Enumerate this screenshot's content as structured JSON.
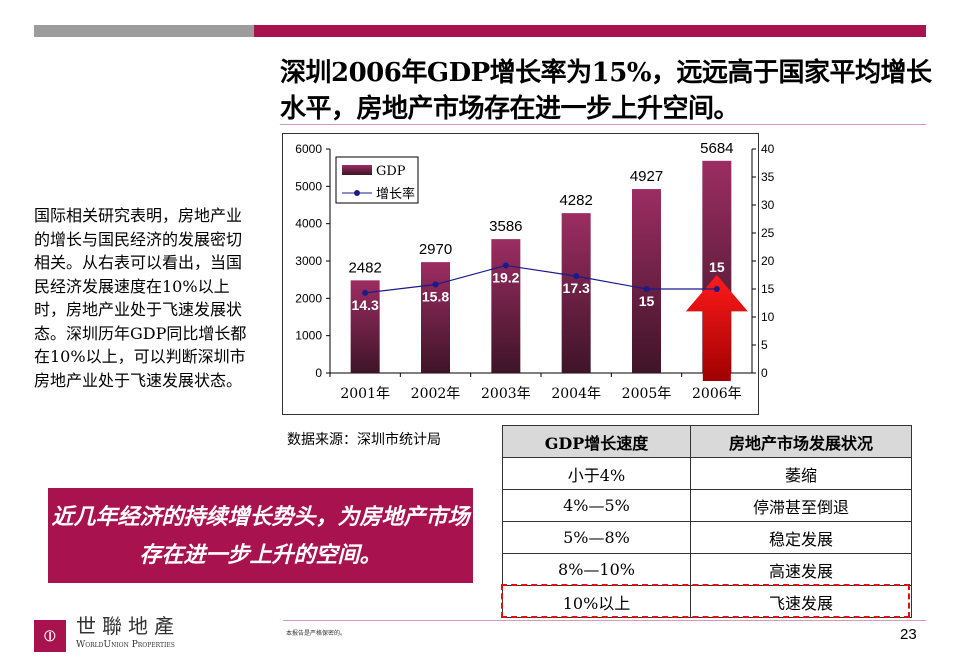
{
  "title": "深圳2006年GDP增长率为15%，远远高于国家平均增长水平，房地产市场存在进一步上升空间。",
  "left_text": "国际相关研究表明，房地产业的增长与国民经济的发展密切相关。从右表可以看出，当国民经济发展速度在10%以上时，房地产业处于飞速发展状态。深圳历年GDP同比增长都在10%以上，可以判断深圳市房地产业处于飞速发展状态。",
  "source": "数据来源：深圳市统计局",
  "callout": "近几年经济的持续增长势头，为房地产市场存在进一步上升的空间。",
  "table": {
    "headers": [
      "GDP增长速度",
      "房地产市场发展状况"
    ],
    "rows": [
      [
        "小于4%",
        "萎缩"
      ],
      [
        "4%—5%",
        "停滞甚至倒退"
      ],
      [
        "5%—8%",
        "稳定发展"
      ],
      [
        "8%—10%",
        "高速发展"
      ],
      [
        "10%以上",
        "飞速发展"
      ]
    ]
  },
  "footer": {
    "note": "本报告是严格保密的。",
    "page": "23",
    "logo_cn": "世聯地產",
    "logo_en": "WorldUnion Properties"
  },
  "colors": {
    "brand": "#a8124f",
    "bar": "#8b2454",
    "line": "#1a1a8c",
    "highlight": "#e01010"
  },
  "chart_data": {
    "type": "bar+line",
    "categories": [
      "2001年",
      "2002年",
      "2003年",
      "2004年",
      "2005年",
      "2006年"
    ],
    "series": [
      {
        "name": "GDP",
        "type": "bar",
        "axis": "left",
        "values": [
          2482,
          2970,
          3586,
          4282,
          4927,
          5684
        ],
        "labels": [
          "2482",
          "2970",
          "3586",
          "4282",
          "4927",
          "5684"
        ]
      },
      {
        "name": "增长率",
        "type": "line",
        "axis": "right",
        "values": [
          14.3,
          15.8,
          19.2,
          17.3,
          15,
          15
        ],
        "labels": [
          "14.3",
          "15.8",
          "19.2",
          "17.3",
          "15",
          "15"
        ]
      }
    ],
    "ylim_left": [
      0,
      6000
    ],
    "yticks_left": [
      "0",
      "1000",
      "2000",
      "3000",
      "4000",
      "5000",
      "6000"
    ],
    "ylim_right": [
      0,
      40
    ],
    "yticks_right": [
      "0",
      "5",
      "10",
      "15",
      "20",
      "25",
      "30",
      "35",
      "40"
    ],
    "legend": "top-left",
    "annotation": "red up arrow on 2006"
  }
}
